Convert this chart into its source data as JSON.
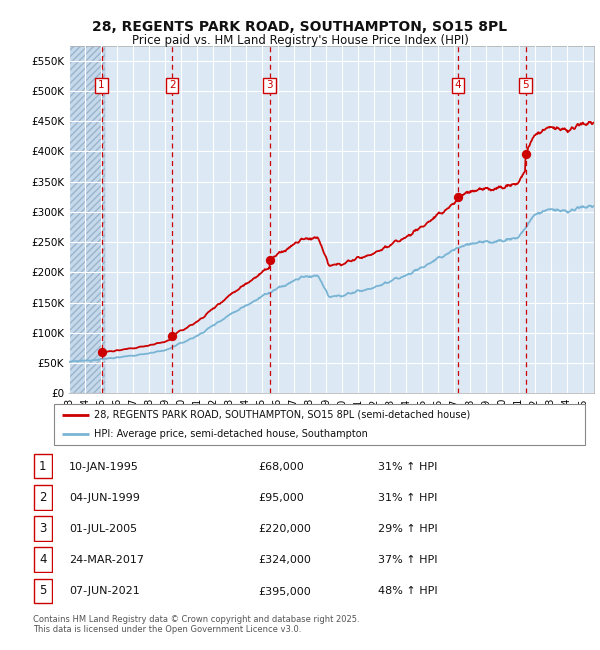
{
  "title": "28, REGENTS PARK ROAD, SOUTHAMPTON, SO15 8PL",
  "subtitle": "Price paid vs. HM Land Registry's House Price Index (HPI)",
  "background_color": "#dce9f5",
  "plot_bg_color": "#dce9f5",
  "grid_color": "#ffffff",
  "red_line_color": "#cc0000",
  "blue_line_color": "#7ab4d4",
  "sale_dates_x": [
    1995.03,
    1999.42,
    2005.5,
    2017.23,
    2021.44
  ],
  "sale_prices": [
    68000,
    95000,
    220000,
    324000,
    395000
  ],
  "sale_labels": [
    "1",
    "2",
    "3",
    "4",
    "5"
  ],
  "sale_info": [
    [
      "1",
      "10-JAN-1995",
      "£68,000",
      "31% ↑ HPI"
    ],
    [
      "2",
      "04-JUN-1999",
      "£95,000",
      "31% ↑ HPI"
    ],
    [
      "3",
      "01-JUL-2005",
      "£220,000",
      "29% ↑ HPI"
    ],
    [
      "4",
      "24-MAR-2017",
      "£324,000",
      "37% ↑ HPI"
    ],
    [
      "5",
      "07-JUN-2021",
      "£395,000",
      "48% ↑ HPI"
    ]
  ],
  "legend_entries": [
    "28, REGENTS PARK ROAD, SOUTHAMPTON, SO15 8PL (semi-detached house)",
    "HPI: Average price, semi-detached house, Southampton"
  ],
  "footnote": "Contains HM Land Registry data © Crown copyright and database right 2025.\nThis data is licensed under the Open Government Licence v3.0.",
  "ylim": [
    0,
    575000
  ],
  "xlim_start": 1993.0,
  "xlim_end": 2025.7,
  "yticks": [
    0,
    50000,
    100000,
    150000,
    200000,
    250000,
    300000,
    350000,
    400000,
    450000,
    500000,
    550000
  ],
  "ytick_labels": [
    "£0",
    "£50K",
    "£100K",
    "£150K",
    "£200K",
    "£250K",
    "£300K",
    "£350K",
    "£400K",
    "£450K",
    "£500K",
    "£550K"
  ]
}
